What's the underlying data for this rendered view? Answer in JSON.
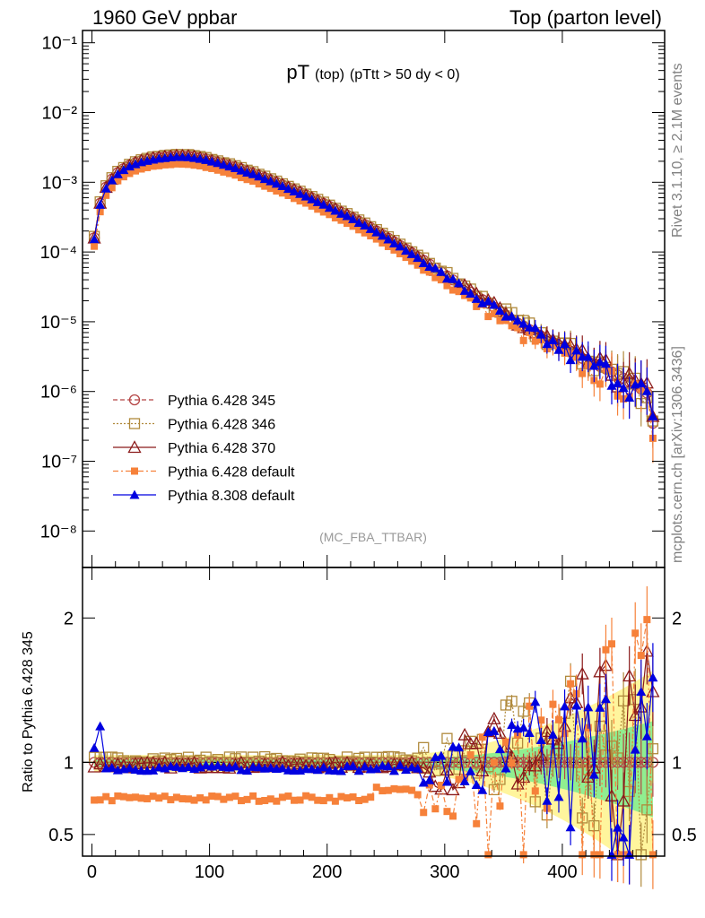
{
  "header": {
    "left": "1960 GeV ppbar",
    "right": "Top (parton level)"
  },
  "side": {
    "rivet": "Rivet 3.1.10, ≥ 2.1M events",
    "mcplots": "mcplots.cern.ch [arXiv:1306.3436]"
  },
  "chart_data": [
    {
      "type": "scatter",
      "panel": "main",
      "title": "pT",
      "title_sub": "(top)",
      "title_cut": "(pTtt > 50 dy < 0)",
      "watermark": "(MC_FBA_TTBAR)",
      "yscale": "log",
      "ylim": [
        3e-09,
        0.15
      ],
      "xlim": [
        -8,
        487
      ],
      "y_ticks": [
        {
          "value": 0.1,
          "label": "10⁻¹"
        },
        {
          "value": 0.01,
          "label": "10⁻²"
        },
        {
          "value": 0.001,
          "label": "10⁻³"
        },
        {
          "value": 0.0001,
          "label": "10⁻⁴"
        },
        {
          "value": 1e-05,
          "label": "10⁻⁵"
        },
        {
          "value": 1e-06,
          "label": "10⁻⁶"
        },
        {
          "value": 1e-07,
          "label": "10⁻⁷"
        },
        {
          "value": 1e-08,
          "label": "10⁻⁸"
        }
      ],
      "legend_position": "bottom-left",
      "series": [
        {
          "name": "Pythia 6.428 345",
          "color": "#b54545",
          "marker": "circle-open",
          "line": "dashed"
        },
        {
          "name": "Pythia 6.428 346",
          "color": "#b08a3c",
          "marker": "square-open",
          "line": "dotted"
        },
        {
          "name": "Pythia 6.428 370",
          "color": "#8b1a1a",
          "marker": "triangle-open",
          "line": "solid"
        },
        {
          "name": "Pythia 6.428 default",
          "color": "#f6813a",
          "marker": "square-filled",
          "line": "dashdot"
        },
        {
          "name": "Pythia 8.308 default",
          "color": "#0000e0",
          "marker": "triangle-filled",
          "line": "solid"
        }
      ],
      "reference_curve": {
        "x": [
          2,
          7,
          12,
          20,
          30,
          40,
          50,
          60,
          70,
          80,
          90,
          100,
          120,
          140,
          160,
          180,
          200,
          220,
          240,
          260,
          280,
          300,
          320,
          340,
          360,
          380,
          400,
          420,
          440,
          460,
          472,
          477
        ],
        "y": [
          0.00016,
          0.0005,
          0.00085,
          0.0013,
          0.0017,
          0.002,
          0.0022,
          0.0023,
          0.0024,
          0.0024,
          0.0023,
          0.0021,
          0.0017,
          0.0013,
          0.00095,
          0.00068,
          0.00047,
          0.00032,
          0.00021,
          0.00013,
          8e-05,
          4.8e-05,
          2.8e-05,
          1.7e-05,
          1e-05,
          6.5e-06,
          4.3e-06,
          2.8e-06,
          2e-06,
          1.3e-06,
          9.5e-07,
          3.5e-07
        ]
      },
      "series_scale": [
        1.0,
        1.04,
        1.0,
        0.76,
        0.96
      ]
    },
    {
      "type": "scatter",
      "panel": "ratio",
      "ylabel": "Ratio to Pythia 6.428 345",
      "ylim": [
        0.35,
        2.35
      ],
      "xlim": [
        -8,
        487
      ],
      "reference_line": 1,
      "y_ticks": [
        {
          "value": 0.5,
          "label": "0.5"
        },
        {
          "value": 1,
          "label": "1"
        },
        {
          "value": 2,
          "label": "2"
        }
      ],
      "x_ticks": [
        {
          "value": 0,
          "label": "0"
        },
        {
          "value": 100,
          "label": "100"
        },
        {
          "value": 200,
          "label": "200"
        },
        {
          "value": 300,
          "label": "300"
        },
        {
          "value": 400,
          "label": "400"
        }
      ],
      "band_colors": {
        "outer": "#fff59d",
        "inner": "#90ee90"
      },
      "ratio_levels": [
        1.0,
        1.02,
        0.98,
        0.75,
        0.96
      ]
    }
  ]
}
